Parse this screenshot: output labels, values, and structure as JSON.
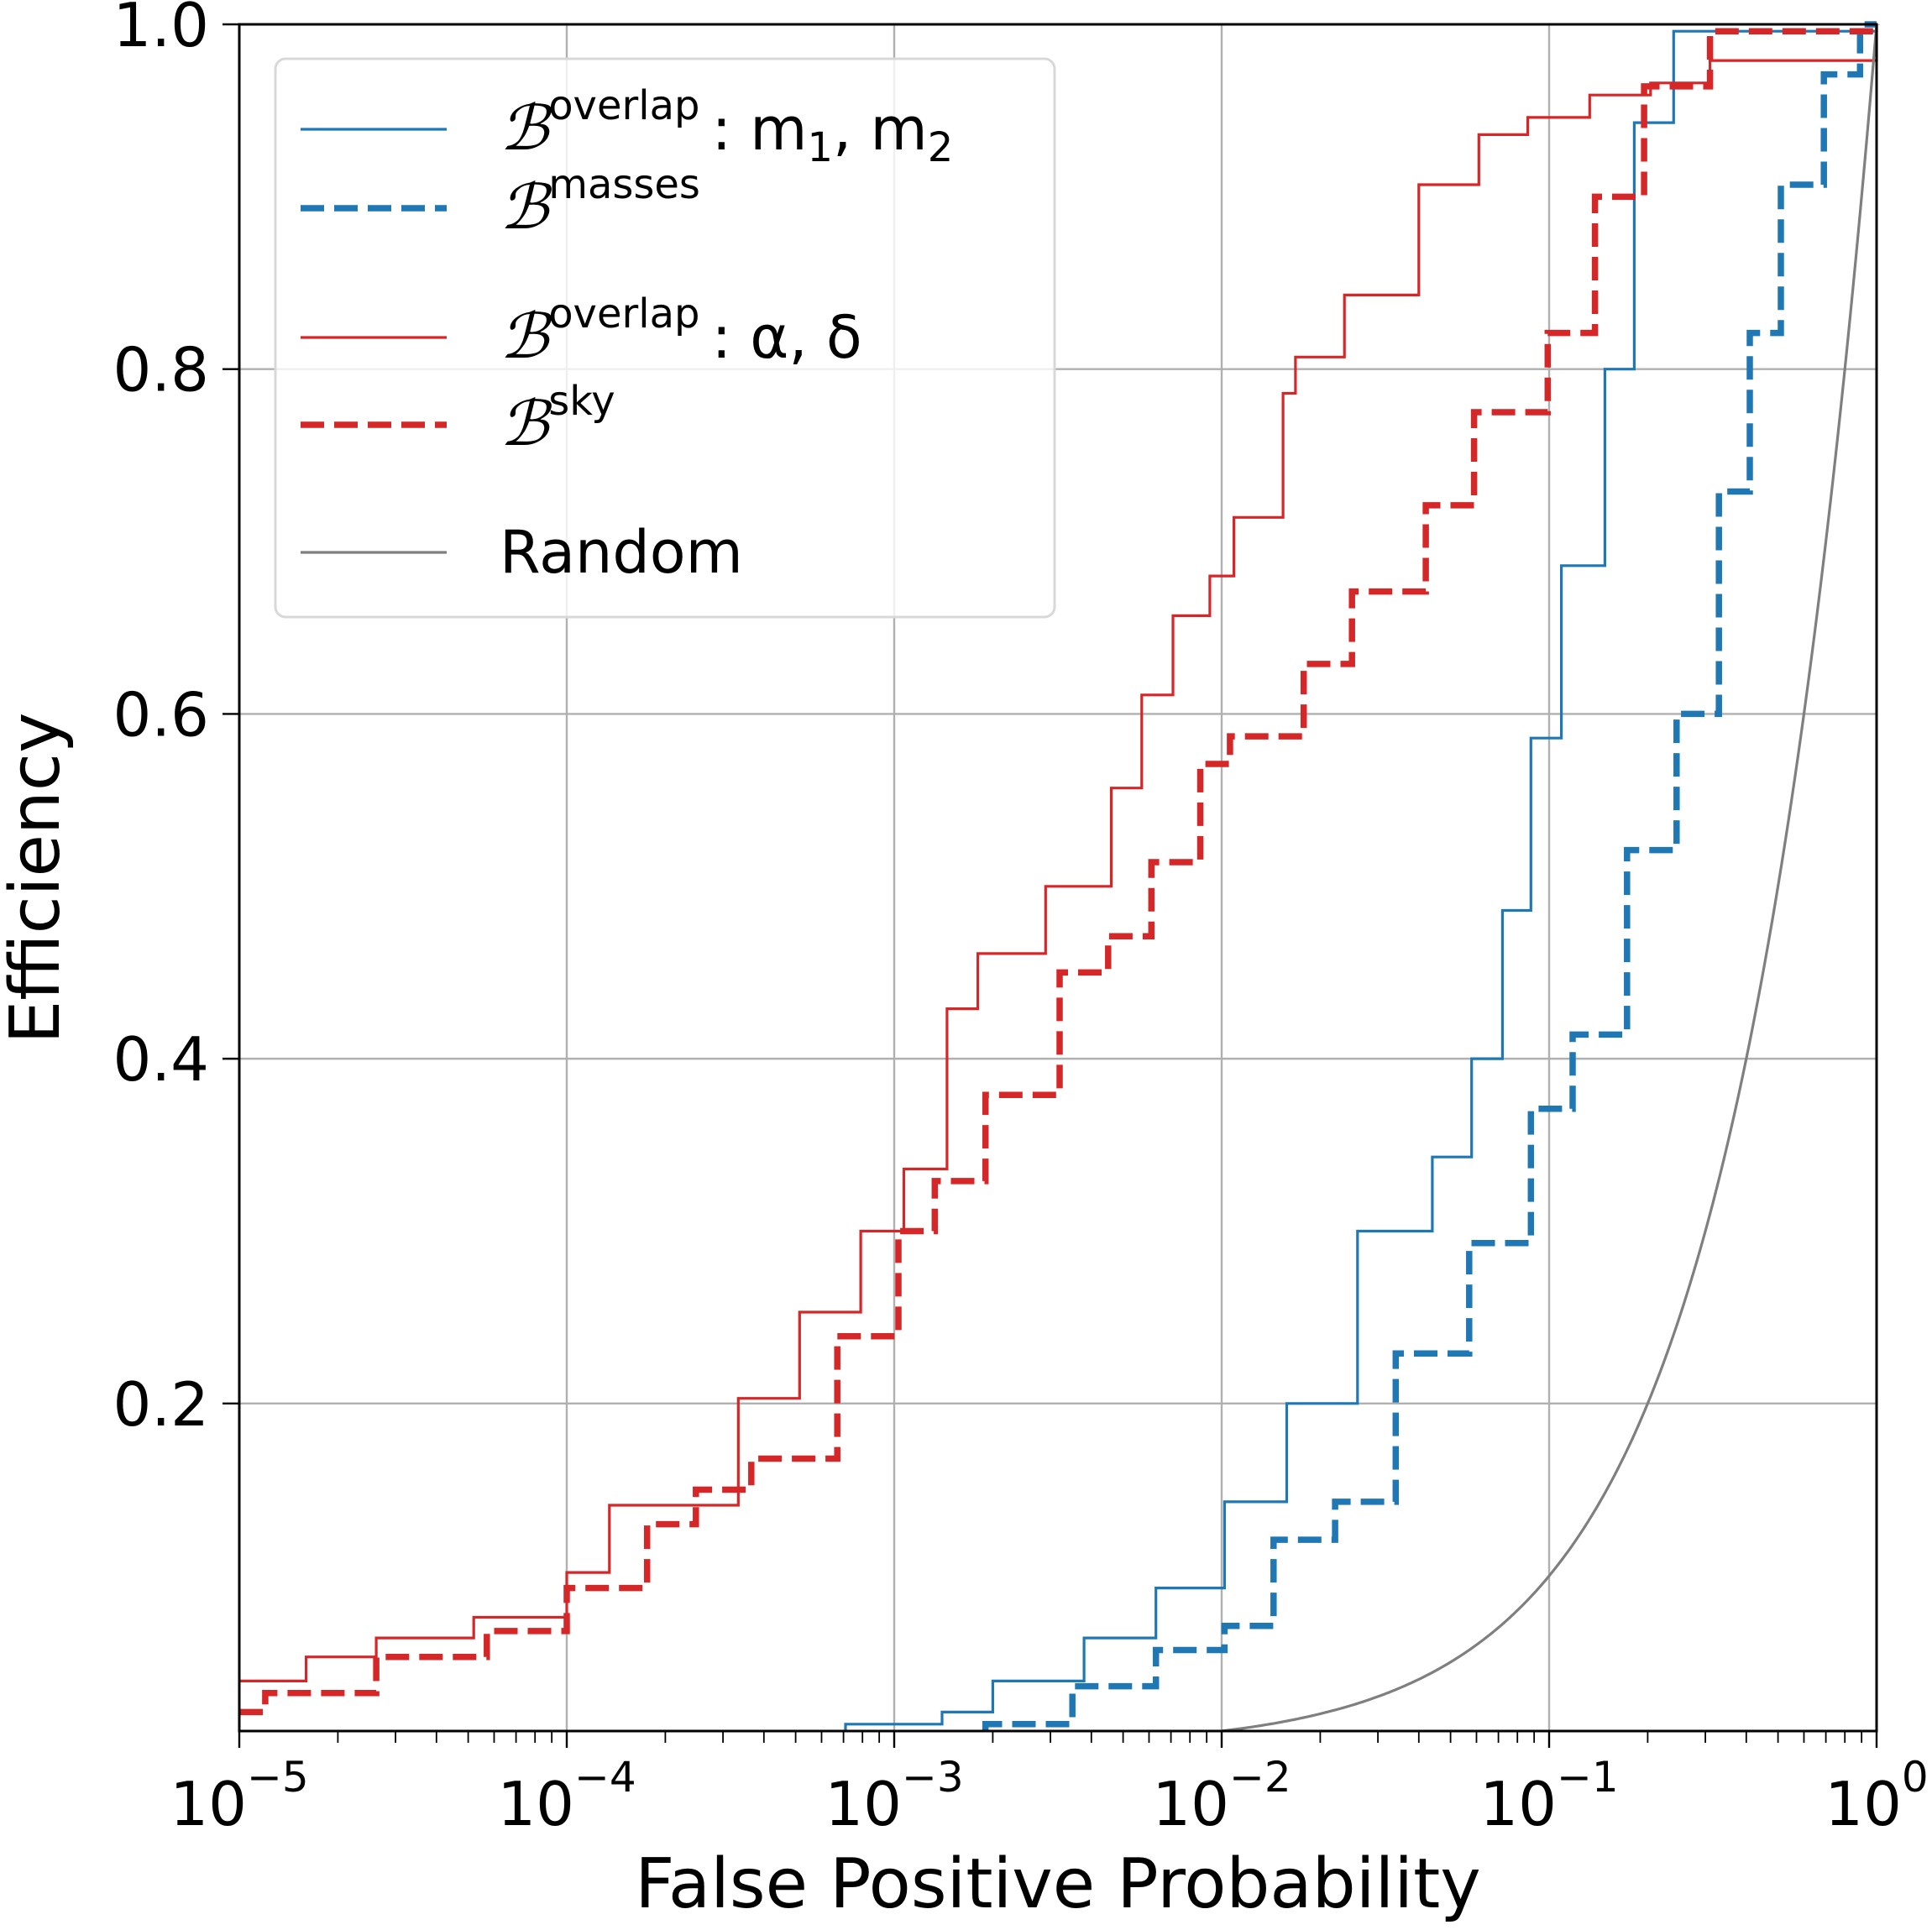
{
  "chart_data": {
    "type": "line",
    "title": "",
    "xlabel": "False Positive Probability",
    "ylabel": "Efficiency",
    "xscale": "log",
    "xlim": [
      1e-05,
      1
    ],
    "ylim": [
      0.01,
      1.0
    ],
    "grid": true,
    "legend_position": "top-left",
    "x_ticks": [
      {
        "base": "10",
        "exp": "−5",
        "value": 1e-05
      },
      {
        "base": "10",
        "exp": "−4",
        "value": 0.0001
      },
      {
        "base": "10",
        "exp": "−3",
        "value": 0.001
      },
      {
        "base": "10",
        "exp": "−2",
        "value": 0.01
      },
      {
        "base": "10",
        "exp": "−1",
        "value": 0.1
      },
      {
        "base": "10",
        "exp": "0",
        "value": 1
      }
    ],
    "y_ticks": [
      {
        "label": "0.2",
        "value": 0.2
      },
      {
        "label": "0.4",
        "value": 0.4
      },
      {
        "label": "0.6",
        "value": 0.6
      },
      {
        "label": "0.8",
        "value": 0.8
      },
      {
        "label": "1.0",
        "value": 1.0
      }
    ],
    "series": [
      {
        "name": "B^overlap : m1, m2",
        "legend": {
          "symbol": "ℬ",
          "sup": "overlap",
          "suffix": ": m",
          "sub1": "1",
          "mid": ", m",
          "sub2": "2"
        },
        "color": "#1f77b4",
        "style": "solid",
        "step": true,
        "x": [
          0.00071,
          0.0014,
          0.002,
          0.0038,
          0.0063,
          0.0102,
          0.0158,
          0.026,
          0.044,
          0.058,
          0.072,
          0.088,
          0.109,
          0.148,
          0.182,
          0.24,
          1.0
        ],
        "y": [
          0.014,
          0.021,
          0.039,
          0.064,
          0.093,
          0.143,
          0.2,
          0.3,
          0.343,
          0.4,
          0.486,
          0.586,
          0.686,
          0.8,
          0.943,
          0.996,
          1.0
        ]
      },
      {
        "name": "B^masses",
        "legend": {
          "symbol": "ℬ",
          "sup": "masses"
        },
        "color": "#1f77b4",
        "style": "dashed",
        "step": true,
        "x": [
          0.0019,
          0.0035,
          0.0063,
          0.0102,
          0.0144,
          0.0222,
          0.034,
          0.057,
          0.088,
          0.118,
          0.173,
          0.245,
          0.33,
          0.41,
          0.51,
          0.69,
          0.89
        ],
        "y": [
          0.014,
          0.036,
          0.057,
          0.071,
          0.121,
          0.143,
          0.229,
          0.293,
          0.371,
          0.414,
          0.521,
          0.6,
          0.729,
          0.821,
          0.907,
          0.971,
          1.0
        ]
      },
      {
        "name": "B^overlap : α, δ",
        "legend": {
          "symbol": "ℬ",
          "sup": "overlap",
          "suffix": ": α, δ"
        },
        "color": "#d62728",
        "style": "solid",
        "step": true,
        "x": [
          1e-05,
          1.6e-05,
          2.62e-05,
          5.2e-05,
          0.0001,
          0.000135,
          0.000334,
          0.000514,
          0.00079,
          0.00107,
          0.00145,
          0.0018,
          0.0029,
          0.0046,
          0.0057,
          0.0071,
          0.0092,
          0.0109,
          0.0154,
          0.0168,
          0.0237,
          0.04,
          0.061,
          0.086,
          0.133,
          0.204,
          0.31,
          1.0
        ],
        "y": [
          0.039,
          0.053,
          0.064,
          0.076,
          0.102,
          0.141,
          0.203,
          0.253,
          0.3,
          0.336,
          0.429,
          0.461,
          0.5,
          0.557,
          0.611,
          0.657,
          0.68,
          0.714,
          0.786,
          0.807,
          0.843,
          0.907,
          0.936,
          0.946,
          0.959,
          0.966,
          0.979,
          1.0
        ]
      },
      {
        "name": "B^sky",
        "legend": {
          "symbol": "ℬ",
          "sup": "sky"
        },
        "color": "#d62728",
        "style": "dashed",
        "step": true,
        "x": [
          1e-05,
          1.2e-05,
          2.62e-05,
          5.7e-05,
          0.0001,
          0.000176,
          0.000248,
          0.000366,
          0.00067,
          0.00103,
          0.00133,
          0.0019,
          0.0032,
          0.0045,
          0.0061,
          0.0086,
          0.0106,
          0.0178,
          0.025,
          0.042,
          0.059,
          0.099,
          0.138,
          0.195,
          0.31,
          1.0
        ],
        "y": [
          0.021,
          0.032,
          0.053,
          0.068,
          0.093,
          0.13,
          0.15,
          0.168,
          0.239,
          0.3,
          0.329,
          0.379,
          0.45,
          0.471,
          0.514,
          0.571,
          0.587,
          0.629,
          0.671,
          0.721,
          0.775,
          0.821,
          0.9,
          0.964,
          0.996,
          1.0
        ]
      },
      {
        "name": "Random",
        "legend": {
          "symbol": "",
          "sup": "",
          "suffix": "Random"
        },
        "color": "#7f7f7f",
        "style": "solid",
        "step": false,
        "function": "y = x",
        "x": [
          0.01,
          0.02,
          0.05,
          0.1,
          0.2,
          0.4,
          0.6,
          0.8,
          1.0
        ],
        "y": [
          0.01,
          0.02,
          0.05,
          0.1,
          0.2,
          0.4,
          0.6,
          0.8,
          1.0
        ]
      }
    ]
  }
}
